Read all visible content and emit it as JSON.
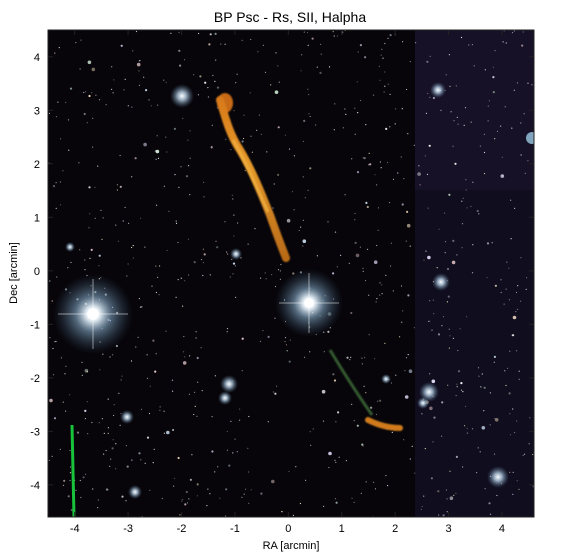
{
  "figure": {
    "title": "BP Psc -  Rs, SII, Halpha",
    "xlabel": "RA [arcmin]",
    "ylabel": "Dec [arcmin]",
    "xticks": [
      "-4",
      "-3",
      "-2",
      "-1",
      "0",
      "1",
      "2",
      "3",
      "4"
    ],
    "yticks": [
      "4",
      "3",
      "2",
      "1",
      "0",
      "-1",
      "-2",
      "-3",
      "-4"
    ],
    "xlim": [
      -4.5,
      4.6
    ],
    "ylim": [
      -4.6,
      4.5
    ],
    "colors": {
      "sky": "#07050a",
      "jet": "#d0801c",
      "star_core": "#ffffff",
      "star_glow": "#8fb7d6",
      "marker": "#18c23a"
    },
    "objects": [
      {
        "name": "central-star",
        "ra": 0.35,
        "dec": -0.6
      },
      {
        "name": "bright-star-west",
        "ra": -3.8,
        "dec": -0.78
      },
      {
        "name": "northern-jet",
        "ra_start": -1.25,
        "dec_start": 3.3,
        "ra_end": -0.15,
        "dec_end": 0.4
      },
      {
        "name": "southern-jet",
        "ra_start": 0.9,
        "dec_start": -1.7,
        "ra_end": 1.85,
        "dec_end": -2.95
      }
    ]
  }
}
